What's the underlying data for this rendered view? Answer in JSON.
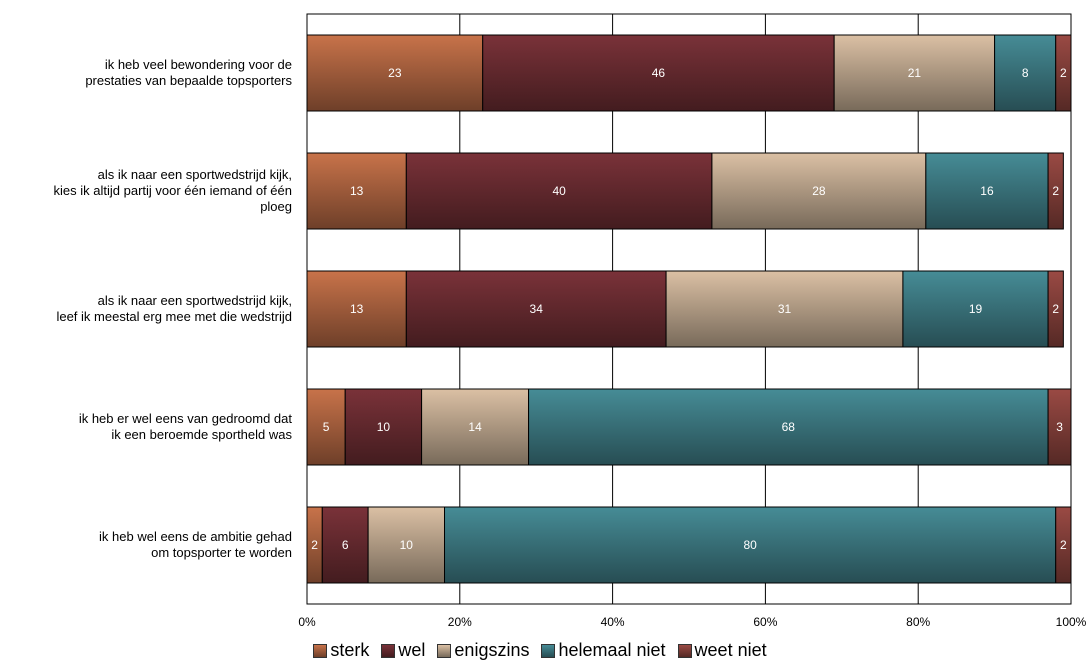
{
  "chart_data": {
    "type": "bar",
    "orientation": "horizontal",
    "stacked": true,
    "categories": [
      [
        "ik heb veel bewondering voor de",
        "prestaties van bepaalde topsporters"
      ],
      [
        "als ik naar een sportwedstrijd kijk,",
        "kies ik altijd partij voor één iemand of één",
        "ploeg"
      ],
      [
        "als ik naar een sportwedstrijd kijk,",
        "leef ik meestal erg mee met die wedstrijd"
      ],
      [
        "ik heb er wel eens van gedroomd dat",
        "ik een beroemde sportheld was"
      ],
      [
        "ik heb wel eens de ambitie gehad",
        "om topsporter te worden"
      ]
    ],
    "series": [
      {
        "name": "sterk",
        "color": "#c8734a",
        "values": [
          23,
          13,
          13,
          5,
          2
        ]
      },
      {
        "name": "wel",
        "color": "#7a3239",
        "values": [
          46,
          40,
          34,
          10,
          6
        ]
      },
      {
        "name": "enigszins",
        "color": "#dbc0a4",
        "values": [
          21,
          28,
          31,
          14,
          10
        ]
      },
      {
        "name": "helemaal niet",
        "color": "#468c96",
        "values": [
          8,
          16,
          19,
          68,
          80
        ]
      },
      {
        "name": "weet niet",
        "color": "#9a4a44",
        "values": [
          2,
          2,
          2,
          3,
          2
        ]
      }
    ],
    "xlim": [
      0,
      100
    ],
    "xticks": [
      "0%",
      "20%",
      "40%",
      "60%",
      "80%",
      "100%"
    ],
    "grid": true,
    "legend": "bottom",
    "title": "",
    "xlabel": "",
    "ylabel": ""
  }
}
